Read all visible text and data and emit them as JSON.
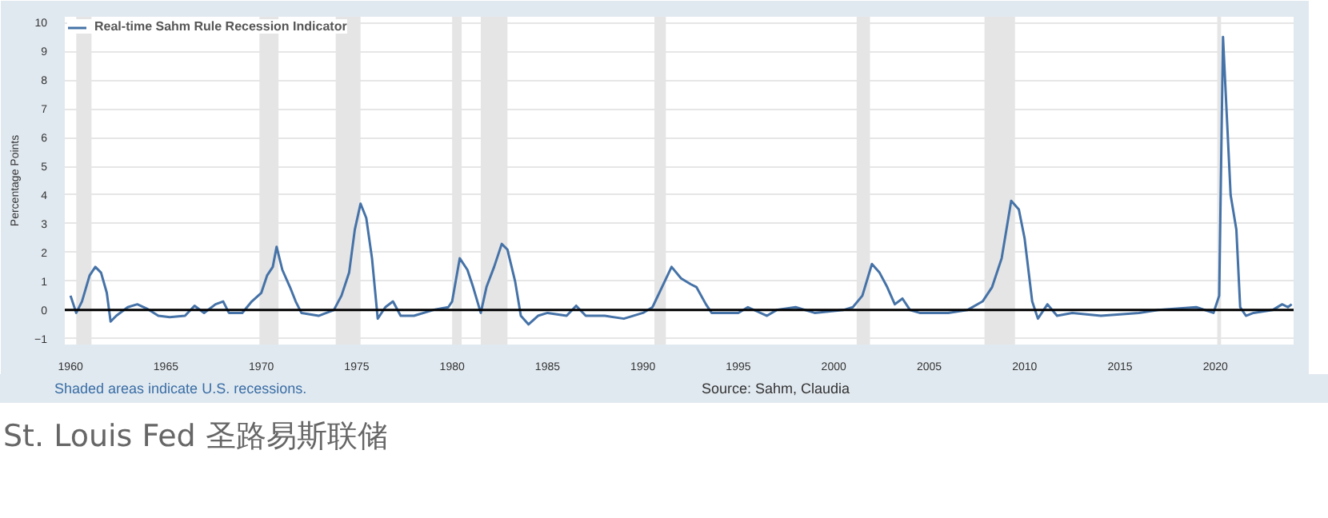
{
  "chart_data": {
    "type": "line",
    "ylabel": "Percentage Points",
    "x": [
      1960.0,
      1960.3,
      1960.6,
      1961.0,
      1961.3,
      1961.6,
      1961.9,
      1962.1,
      1962.4,
      1963.0,
      1963.5,
      1964.0,
      1964.6,
      1965.2,
      1966.0,
      1966.5,
      1967.0,
      1967.6,
      1968.0,
      1968.3,
      1969.0,
      1969.5,
      1970.0,
      1970.3,
      1970.6,
      1970.8,
      1971.1,
      1971.5,
      1971.8,
      1972.1,
      1973.0,
      1973.8,
      1974.2,
      1974.6,
      1974.9,
      1975.2,
      1975.5,
      1975.8,
      1976.1,
      1976.5,
      1976.9,
      1977.3,
      1978.0,
      1979.0,
      1979.8,
      1980.0,
      1980.4,
      1980.8,
      1981.1,
      1981.5,
      1981.8,
      1982.2,
      1982.6,
      1982.9,
      1983.3,
      1983.6,
      1984.0,
      1984.5,
      1985.0,
      1986.0,
      1986.5,
      1987.0,
      1988.0,
      1989.0,
      1990.0,
      1990.5,
      1991.0,
      1991.5,
      1992.0,
      1992.5,
      1992.8,
      1993.3,
      1993.6,
      1995.0,
      1995.5,
      1996.5,
      1997.0,
      1998.0,
      1999.0,
      2000.5,
      2001.0,
      2001.5,
      2002.0,
      2002.4,
      2002.8,
      2003.2,
      2003.6,
      2004.0,
      2004.5,
      2006.0,
      2007.0,
      2007.8,
      2008.3,
      2008.8,
      2009.3,
      2009.7,
      2010.0,
      2010.4,
      2010.7,
      2011.2,
      2011.7,
      2012.5,
      2014.0,
      2016.0,
      2017.0,
      2019.0,
      2019.9,
      2020.2,
      2020.4,
      2020.8,
      2021.1,
      2021.3,
      2021.6,
      2022.0,
      2023.0,
      2023.5,
      2023.8,
      2024.0
    ],
    "series": [
      {
        "name": "Real-time Sahm Rule Recession Indicator",
        "color": "#4572a7",
        "values": [
          0.5,
          -0.1,
          0.3,
          1.2,
          1.5,
          1.3,
          0.6,
          -0.4,
          -0.2,
          0.1,
          0.2,
          0.05,
          -0.2,
          -0.25,
          -0.2,
          0.15,
          -0.1,
          0.2,
          0.3,
          -0.1,
          -0.1,
          0.3,
          0.6,
          1.2,
          1.5,
          2.2,
          1.4,
          0.8,
          0.3,
          -0.1,
          -0.2,
          0.0,
          0.5,
          1.3,
          2.8,
          3.7,
          3.2,
          1.8,
          -0.3,
          0.1,
          0.3,
          -0.2,
          -0.2,
          0.0,
          0.1,
          0.3,
          1.8,
          1.4,
          0.8,
          -0.1,
          0.8,
          1.5,
          2.3,
          2.1,
          1.0,
          -0.2,
          -0.5,
          -0.2,
          -0.1,
          -0.2,
          0.15,
          -0.2,
          -0.2,
          -0.3,
          -0.1,
          0.1,
          0.8,
          1.5,
          1.1,
          0.9,
          0.8,
          0.2,
          -0.1,
          -0.1,
          0.1,
          -0.2,
          0.0,
          0.1,
          -0.1,
          0.0,
          0.1,
          0.5,
          1.6,
          1.3,
          0.8,
          0.2,
          0.4,
          0.0,
          -0.1,
          -0.1,
          0.0,
          0.3,
          0.8,
          1.8,
          3.8,
          3.5,
          2.5,
          0.3,
          -0.3,
          0.2,
          -0.2,
          -0.1,
          -0.2,
          -0.1,
          0.0,
          0.1,
          -0.1,
          0.5,
          9.5,
          4.0,
          2.8,
          0.1,
          -0.2,
          -0.1,
          0.0,
          0.2,
          0.1,
          0.2
        ]
      }
    ],
    "xlim": [
      1959.7,
      2024.1
    ],
    "xticks": [
      1960,
      1965,
      1970,
      1975,
      1980,
      1985,
      1990,
      1995,
      2000,
      2005,
      2010,
      2015,
      2020
    ],
    "ylim": [
      -1.2,
      10.2
    ],
    "yticks": [
      -1,
      0,
      1,
      2,
      3,
      4,
      5,
      6,
      7,
      8,
      9,
      10
    ],
    "grid": "y",
    "legend": "top left",
    "ref_lines": [
      {
        "axis": "y",
        "value": 0,
        "color": "#000000"
      }
    ],
    "bands": [
      {
        "axis": "x",
        "from": 1960.3,
        "to": 1961.1,
        "color": "#e5e5e5"
      },
      {
        "axis": "x",
        "from": 1969.9,
        "to": 1970.9,
        "color": "#e5e5e5"
      },
      {
        "axis": "x",
        "from": 1973.9,
        "to": 1975.2,
        "color": "#e5e5e5"
      },
      {
        "axis": "x",
        "from": 1980.0,
        "to": 1980.5,
        "color": "#e5e5e5"
      },
      {
        "axis": "x",
        "from": 1981.5,
        "to": 1982.9,
        "color": "#e5e5e5"
      },
      {
        "axis": "x",
        "from": 1990.6,
        "to": 1991.2,
        "color": "#e5e5e5"
      },
      {
        "axis": "x",
        "from": 2001.2,
        "to": 2001.9,
        "color": "#e5e5e5"
      },
      {
        "axis": "x",
        "from": 2007.9,
        "to": 2009.5,
        "color": "#e5e5e5"
      },
      {
        "axis": "x",
        "from": 2020.1,
        "to": 2020.3,
        "color": "#e5e5e5"
      }
    ],
    "annotations": [
      "Shaded areas indicate U.S. recessions.",
      "Source: Sahm, Claudia",
      "St. Louis Fed 圣路易斯联储"
    ]
  }
}
